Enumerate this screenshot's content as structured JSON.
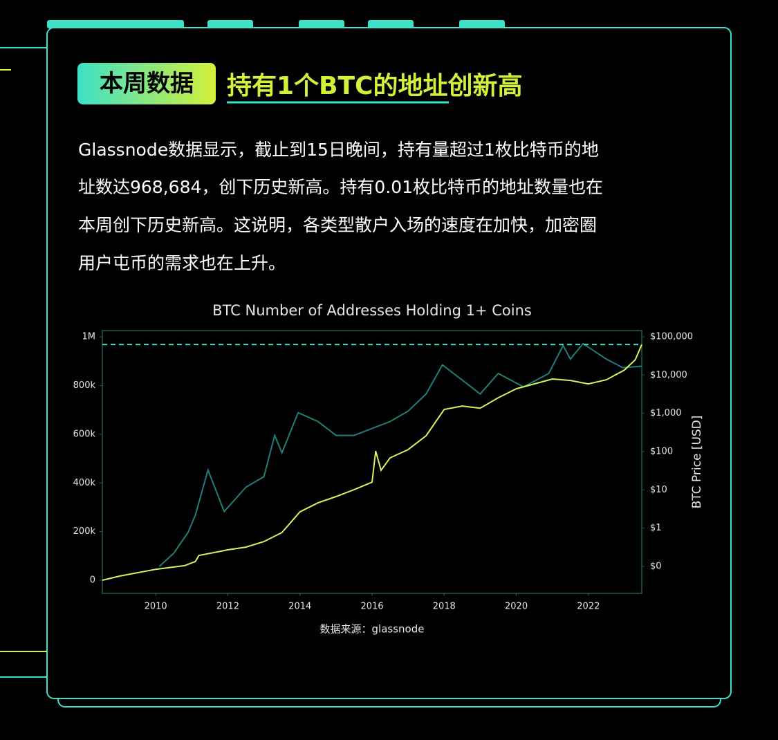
{
  "header": {
    "badge": "本周数据",
    "title": "持有1个BTC的地址创新高"
  },
  "paragraph": {
    "lines": [
      "Glassnode数据显示，截止到15日晚间，持有量超过1枚比特币的地",
      "址数达968,684，创下历史新高。持有0.01枚比特币的地址数量也在",
      "本周创下历史新高。这说明，各类型散户入场的速度在加快，加密圈",
      "用户屯币的需求也在上升。"
    ]
  },
  "chart_data": {
    "type": "line",
    "title": "BTC Number of Addresses Holding 1+ Coins",
    "y2_label": "BTC Price [USD]",
    "source": "数据来源：glassnode",
    "xlim": [
      2008.52,
      2023.48
    ],
    "xticks": [
      2010,
      2012,
      2014,
      2016,
      2018,
      2020,
      2022
    ],
    "ylim": [
      -54000,
      1026000
    ],
    "yticks": [
      {
        "value": 0,
        "label": "0"
      },
      {
        "value": 200000,
        "label": "200k"
      },
      {
        "value": 400000,
        "label": "400k"
      },
      {
        "value": 600000,
        "label": "600k"
      },
      {
        "value": 800000,
        "label": "800k"
      },
      {
        "value": 1000000,
        "label": "1M"
      }
    ],
    "y2lim": [
      0.0197,
      145000
    ],
    "y2_scale": "log",
    "y2ticks": [
      {
        "value": 0.1,
        "label": "$0"
      },
      {
        "value": 1,
        "label": "$1"
      },
      {
        "value": 10,
        "label": "$10"
      },
      {
        "value": 100,
        "label": "$100"
      },
      {
        "value": 1000,
        "label": "$1,000"
      },
      {
        "value": 10000,
        "label": "$10,000"
      },
      {
        "value": 100000,
        "label": "$100,000"
      }
    ],
    "reference_line": {
      "value": 968684,
      "color": "#3de0c8"
    },
    "series": [
      {
        "name": "Addresses",
        "color": "#d4f55a",
        "axis": "y",
        "x": [
          2008.52,
          2009.0,
          2010.0,
          2010.8,
          2011.1,
          2011.2,
          2011.8,
          2012.0,
          2012.5,
          2013.0,
          2013.5,
          2014.0,
          2014.5,
          2015.0,
          2015.5,
          2016.0,
          2016.1,
          2016.25,
          2016.5,
          2017.0,
          2017.5,
          2018.0,
          2018.5,
          2019.0,
          2019.5,
          2020.0,
          2020.5,
          2021.0,
          2021.5,
          2022.0,
          2022.5,
          2023.0,
          2023.3,
          2023.48
        ],
        "values": [
          0,
          17000,
          45000,
          60000,
          77000,
          102000,
          119000,
          125000,
          136000,
          159000,
          196000,
          281000,
          318000,
          344000,
          372000,
          403000,
          531000,
          452000,
          503000,
          537000,
          594000,
          702000,
          716000,
          707000,
          750000,
          787000,
          807000,
          827000,
          821000,
          807000,
          824000,
          864000,
          906000,
          968684
        ]
      },
      {
        "name": "BTC Price",
        "color": "#1f7f7a",
        "axis": "y2",
        "x": [
          2010.1,
          2010.5,
          2010.9,
          2011.1,
          2011.45,
          2011.9,
          2012.5,
          2013.0,
          2013.3,
          2013.5,
          2013.95,
          2014.5,
          2015.0,
          2015.5,
          2016.0,
          2016.5,
          2017.0,
          2017.5,
          2017.95,
          2018.5,
          2019.0,
          2019.5,
          2020.2,
          2020.9,
          2021.3,
          2021.5,
          2021.85,
          2022.5,
          2022.95,
          2023.48
        ],
        "values": [
          0.1,
          0.22,
          0.78,
          2.2,
          33,
          2.7,
          11.7,
          22,
          264,
          93,
          1040,
          610,
          264,
          264,
          400,
          610,
          1140,
          3200,
          18400,
          7400,
          3200,
          11000,
          4900,
          11000,
          59000,
          26000,
          66000,
          26000,
          15600,
          17000
        ]
      }
    ]
  }
}
